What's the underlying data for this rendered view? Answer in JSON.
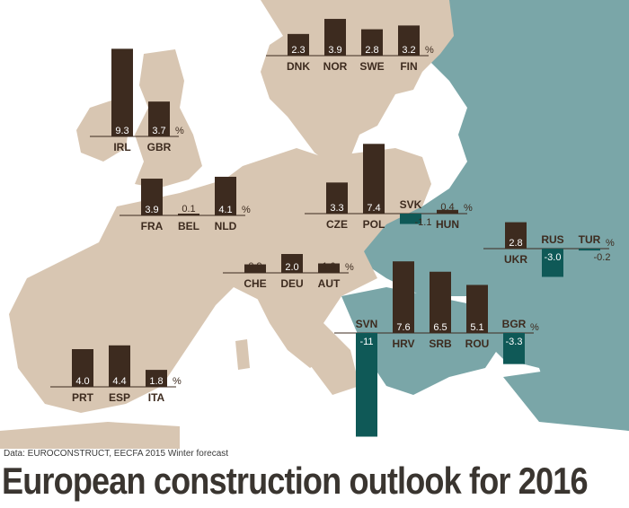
{
  "title": "European construction outlook for 2016",
  "source": "Data: EUROCONSTRUCT, EECFA 2015 Winter forecast",
  "colors": {
    "positive_bar": "#3d2b1f",
    "negative_bar": "#0f5957",
    "land": "#d8c6b2",
    "eastern_land": "#7aa6a8",
    "water": "#ffffff",
    "border": "#ffffff"
  },
  "chart_data": {
    "type": "bar",
    "unit": "%",
    "groups": [
      {
        "countries": [
          {
            "code": "DNK",
            "value": 2.3
          },
          {
            "code": "NOR",
            "value": 3.9
          },
          {
            "code": "SWE",
            "value": 2.8
          },
          {
            "code": "FIN",
            "value": 3.2
          }
        ]
      },
      {
        "countries": [
          {
            "code": "IRL",
            "value": 9.3
          },
          {
            "code": "GBR",
            "value": 3.7
          }
        ]
      },
      {
        "countries": [
          {
            "code": "FRA",
            "value": 3.9
          },
          {
            "code": "BEL",
            "value": 0.1
          },
          {
            "code": "NLD",
            "value": 4.1
          }
        ]
      },
      {
        "countries": [
          {
            "code": "CHE",
            "value": 0.9
          },
          {
            "code": "DEU",
            "value": 2.0
          },
          {
            "code": "AUT",
            "value": 1.0
          }
        ]
      },
      {
        "countries": [
          {
            "code": "CZE",
            "value": 3.3
          },
          {
            "code": "POL",
            "value": 7.4
          },
          {
            "code": "SVK",
            "value": -1.1
          },
          {
            "code": "HUN",
            "value": 0.4
          }
        ]
      },
      {
        "countries": [
          {
            "code": "UKR",
            "value": 2.8
          },
          {
            "code": "RUS",
            "value": -3.0
          },
          {
            "code": "TUR",
            "value": -0.2
          }
        ]
      },
      {
        "countries": [
          {
            "code": "SVN",
            "value": -11
          },
          {
            "code": "HRV",
            "value": 7.6
          },
          {
            "code": "SRB",
            "value": 6.5
          },
          {
            "code": "ROU",
            "value": 5.1
          },
          {
            "code": "BGR",
            "value": -3.3
          }
        ]
      },
      {
        "countries": [
          {
            "code": "PRT",
            "value": 4.0
          },
          {
            "code": "ESP",
            "value": 4.4
          },
          {
            "code": "ITA",
            "value": 1.8
          }
        ]
      }
    ]
  }
}
